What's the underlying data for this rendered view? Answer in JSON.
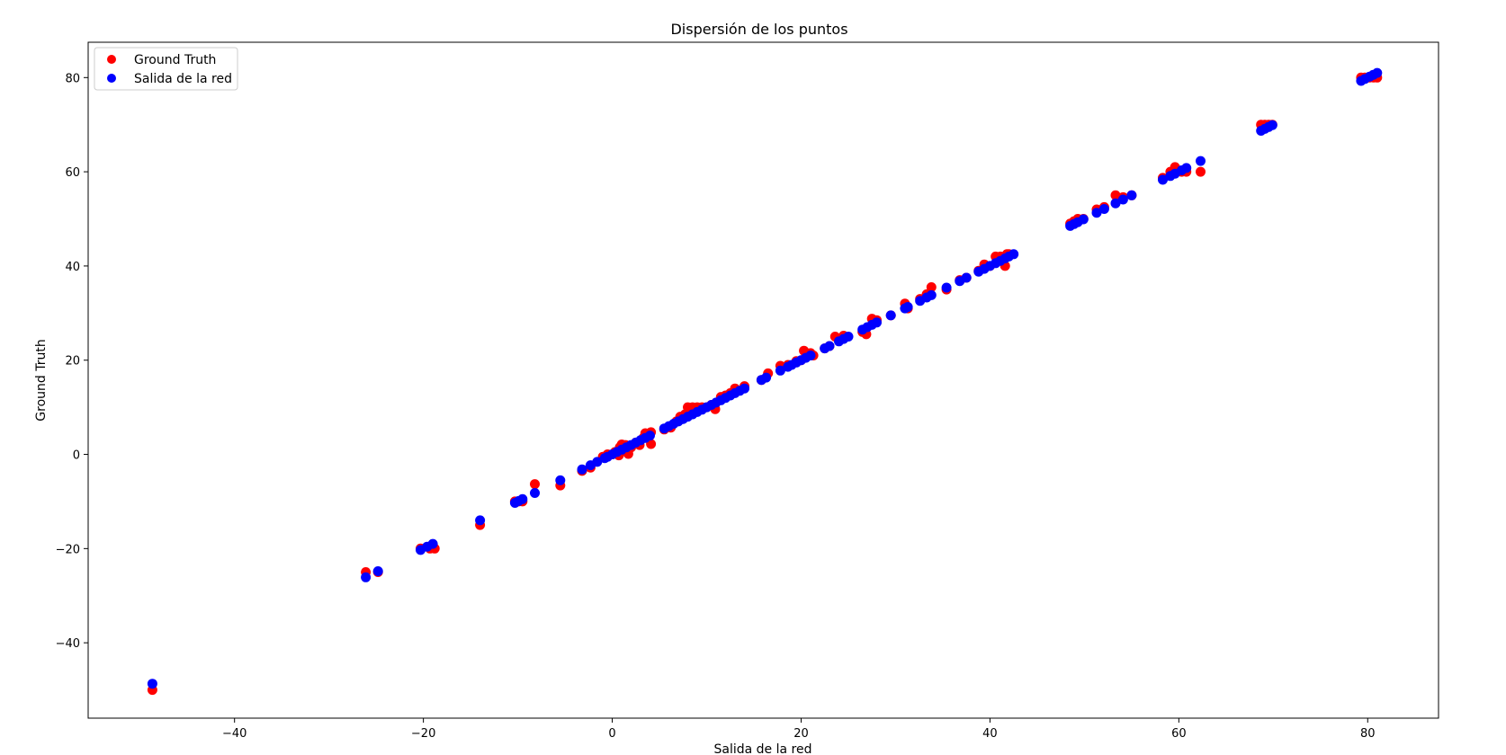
{
  "chart_data": {
    "type": "scatter",
    "title": "Dispersión de los puntos",
    "xlabel": "Salida de la red",
    "ylabel": "Ground Truth",
    "xlim": [
      -55.5,
      87.5
    ],
    "ylim": [
      -56,
      87.5
    ],
    "xticks": [
      -40,
      -20,
      0,
      20,
      40,
      60,
      80
    ],
    "yticks": [
      -40,
      -20,
      0,
      20,
      40,
      60,
      80
    ],
    "xtick_labels": [
      "−40",
      "−20",
      "0",
      "20",
      "40",
      "60",
      "80"
    ],
    "ytick_labels": [
      "−40",
      "−20",
      "0",
      "20",
      "40",
      "60",
      "80"
    ],
    "grid": false,
    "legend_position": "top-left",
    "series": [
      {
        "name": "Ground Truth",
        "color": "#ff0000",
        "points": [
          [
            -48.7,
            -50.0
          ],
          [
            -26.1,
            -25.0
          ],
          [
            -24.8,
            -25.0
          ],
          [
            -20.3,
            -20.0
          ],
          [
            -19.3,
            -20.0
          ],
          [
            -18.8,
            -20.0
          ],
          [
            -14.0,
            -15.0
          ],
          [
            -10.3,
            -10.0
          ],
          [
            -9.9,
            -10.0
          ],
          [
            -9.5,
            -10.0
          ],
          [
            -8.2,
            -6.3
          ],
          [
            -5.5,
            -6.6
          ],
          [
            -3.2,
            -3.5
          ],
          [
            -2.3,
            -2.8
          ],
          [
            -1.0,
            -0.5
          ],
          [
            -0.5,
            0.0
          ],
          [
            0.0,
            0.0
          ],
          [
            0.3,
            0.5
          ],
          [
            0.8,
            1.5
          ],
          [
            1.0,
            2.1
          ],
          [
            0.7,
            -0.2
          ],
          [
            1.4,
            2.0
          ],
          [
            1.7,
            0.1
          ],
          [
            2.0,
            1.5
          ],
          [
            2.5,
            2.5
          ],
          [
            2.9,
            2.0
          ],
          [
            3.3,
            3.5
          ],
          [
            3.5,
            4.5
          ],
          [
            4.1,
            4.7
          ],
          [
            4.1,
            2.2
          ],
          [
            5.5,
            5.3
          ],
          [
            6.2,
            5.7
          ],
          [
            6.8,
            7.0
          ],
          [
            7.2,
            8.0
          ],
          [
            7.7,
            8.5
          ],
          [
            8.0,
            10.0
          ],
          [
            8.5,
            10.0
          ],
          [
            9.0,
            10.0
          ],
          [
            9.5,
            10.0
          ],
          [
            10.0,
            10.0
          ],
          [
            10.5,
            10.5
          ],
          [
            10.9,
            9.6
          ],
          [
            11.5,
            12.2
          ],
          [
            12.0,
            12.5
          ],
          [
            12.5,
            13.0
          ],
          [
            13.0,
            14.0
          ],
          [
            14.0,
            14.5
          ],
          [
            15.8,
            15.8
          ],
          [
            16.5,
            17.2
          ],
          [
            17.8,
            18.8
          ],
          [
            18.6,
            19.0
          ],
          [
            19.5,
            19.8
          ],
          [
            20.0,
            20.0
          ],
          [
            20.3,
            22.0
          ],
          [
            21.0,
            21.5
          ],
          [
            21.3,
            21.0
          ],
          [
            22.5,
            22.5
          ],
          [
            23.0,
            23.0
          ],
          [
            23.6,
            25.0
          ],
          [
            24.5,
            25.2
          ],
          [
            26.5,
            26.0
          ],
          [
            26.9,
            25.5
          ],
          [
            27.5,
            28.8
          ],
          [
            28.0,
            28.5
          ],
          [
            29.5,
            29.5
          ],
          [
            31.0,
            32.0
          ],
          [
            31.3,
            31.0
          ],
          [
            32.6,
            33.0
          ],
          [
            33.3,
            34.0
          ],
          [
            33.8,
            35.5
          ],
          [
            35.4,
            35.0
          ],
          [
            36.8,
            37.0
          ],
          [
            37.5,
            37.5
          ],
          [
            38.8,
            39.0
          ],
          [
            39.4,
            40.3
          ],
          [
            40.0,
            40.0
          ],
          [
            40.6,
            42.0
          ],
          [
            41.1,
            42.0
          ],
          [
            41.6,
            40.0
          ],
          [
            41.8,
            42.5
          ],
          [
            42.0,
            42.5
          ],
          [
            48.5,
            49.0
          ],
          [
            48.9,
            49.5
          ],
          [
            49.3,
            50.0
          ],
          [
            49.9,
            50.0
          ],
          [
            51.3,
            52.0
          ],
          [
            52.1,
            52.5
          ],
          [
            53.3,
            55.0
          ],
          [
            54.1,
            54.6
          ],
          [
            55.0,
            55.0
          ],
          [
            58.3,
            58.7
          ],
          [
            59.1,
            60.0
          ],
          [
            59.6,
            61.0
          ],
          [
            60.3,
            60.0
          ],
          [
            60.8,
            60.0
          ],
          [
            62.3,
            60.0
          ],
          [
            68.7,
            70.0
          ],
          [
            69.1,
            70.0
          ],
          [
            69.5,
            70.0
          ],
          [
            69.9,
            70.0
          ],
          [
            79.3,
            80.0
          ],
          [
            79.7,
            80.0
          ],
          [
            80.2,
            80.0
          ],
          [
            80.6,
            80.0
          ],
          [
            81.0,
            80.0
          ]
        ]
      },
      {
        "name": "Salida de la red",
        "color": "#0000ff",
        "points": [
          [
            -48.7,
            -48.7
          ],
          [
            -26.1,
            -26.1
          ],
          [
            -24.8,
            -24.8
          ],
          [
            -20.3,
            -20.3
          ],
          [
            -19.6,
            -19.6
          ],
          [
            -19.0,
            -19.0
          ],
          [
            -14.0,
            -14.0
          ],
          [
            -10.3,
            -10.3
          ],
          [
            -9.9,
            -9.9
          ],
          [
            -9.5,
            -9.5
          ],
          [
            -8.2,
            -8.2
          ],
          [
            -5.5,
            -5.5
          ],
          [
            -3.2,
            -3.2
          ],
          [
            -2.3,
            -2.3
          ],
          [
            -1.6,
            -1.6
          ],
          [
            -0.8,
            -0.8
          ],
          [
            -0.5,
            -0.5
          ],
          [
            0.0,
            0.0
          ],
          [
            0.5,
            0.5
          ],
          [
            1.0,
            1.0
          ],
          [
            1.5,
            1.5
          ],
          [
            2.0,
            2.0
          ],
          [
            2.5,
            2.5
          ],
          [
            3.0,
            3.0
          ],
          [
            3.5,
            3.5
          ],
          [
            4.0,
            4.0
          ],
          [
            5.5,
            5.5
          ],
          [
            6.0,
            6.0
          ],
          [
            6.5,
            6.5
          ],
          [
            7.0,
            7.0
          ],
          [
            7.5,
            7.5
          ],
          [
            8.0,
            8.0
          ],
          [
            8.5,
            8.5
          ],
          [
            9.0,
            9.0
          ],
          [
            9.5,
            9.5
          ],
          [
            10.0,
            10.0
          ],
          [
            10.5,
            10.5
          ],
          [
            11.0,
            11.0
          ],
          [
            11.5,
            11.5
          ],
          [
            12.0,
            12.0
          ],
          [
            12.5,
            12.5
          ],
          [
            13.0,
            13.0
          ],
          [
            13.5,
            13.5
          ],
          [
            14.0,
            14.0
          ],
          [
            15.8,
            15.8
          ],
          [
            16.3,
            16.3
          ],
          [
            17.8,
            17.8
          ],
          [
            18.6,
            18.6
          ],
          [
            19.0,
            19.0
          ],
          [
            19.5,
            19.5
          ],
          [
            20.0,
            20.0
          ],
          [
            20.5,
            20.5
          ],
          [
            21.0,
            21.0
          ],
          [
            22.5,
            22.5
          ],
          [
            23.0,
            23.0
          ],
          [
            24.0,
            24.0
          ],
          [
            24.5,
            24.5
          ],
          [
            25.0,
            25.0
          ],
          [
            26.5,
            26.5
          ],
          [
            27.0,
            27.0
          ],
          [
            27.5,
            27.5
          ],
          [
            28.0,
            28.0
          ],
          [
            29.5,
            29.5
          ],
          [
            31.0,
            31.0
          ],
          [
            31.3,
            31.3
          ],
          [
            32.6,
            32.6
          ],
          [
            33.3,
            33.3
          ],
          [
            33.8,
            33.8
          ],
          [
            35.4,
            35.4
          ],
          [
            36.8,
            36.8
          ],
          [
            37.5,
            37.5
          ],
          [
            38.8,
            38.8
          ],
          [
            39.4,
            39.4
          ],
          [
            40.0,
            40.0
          ],
          [
            40.6,
            40.6
          ],
          [
            41.1,
            41.1
          ],
          [
            41.6,
            41.6
          ],
          [
            42.0,
            42.0
          ],
          [
            42.5,
            42.5
          ],
          [
            48.5,
            48.5
          ],
          [
            48.9,
            48.9
          ],
          [
            49.3,
            49.3
          ],
          [
            49.9,
            49.9
          ],
          [
            51.3,
            51.3
          ],
          [
            52.1,
            52.1
          ],
          [
            53.3,
            53.3
          ],
          [
            54.1,
            54.1
          ],
          [
            55.0,
            55.0
          ],
          [
            58.3,
            58.3
          ],
          [
            59.1,
            59.1
          ],
          [
            59.6,
            59.6
          ],
          [
            60.3,
            60.3
          ],
          [
            60.8,
            60.8
          ],
          [
            62.3,
            62.3
          ],
          [
            68.7,
            68.7
          ],
          [
            69.1,
            69.1
          ],
          [
            69.5,
            69.5
          ],
          [
            69.9,
            69.9
          ],
          [
            79.3,
            79.3
          ],
          [
            79.7,
            79.7
          ],
          [
            80.2,
            80.2
          ],
          [
            80.6,
            80.6
          ],
          [
            81.0,
            81.0
          ]
        ]
      }
    ]
  }
}
